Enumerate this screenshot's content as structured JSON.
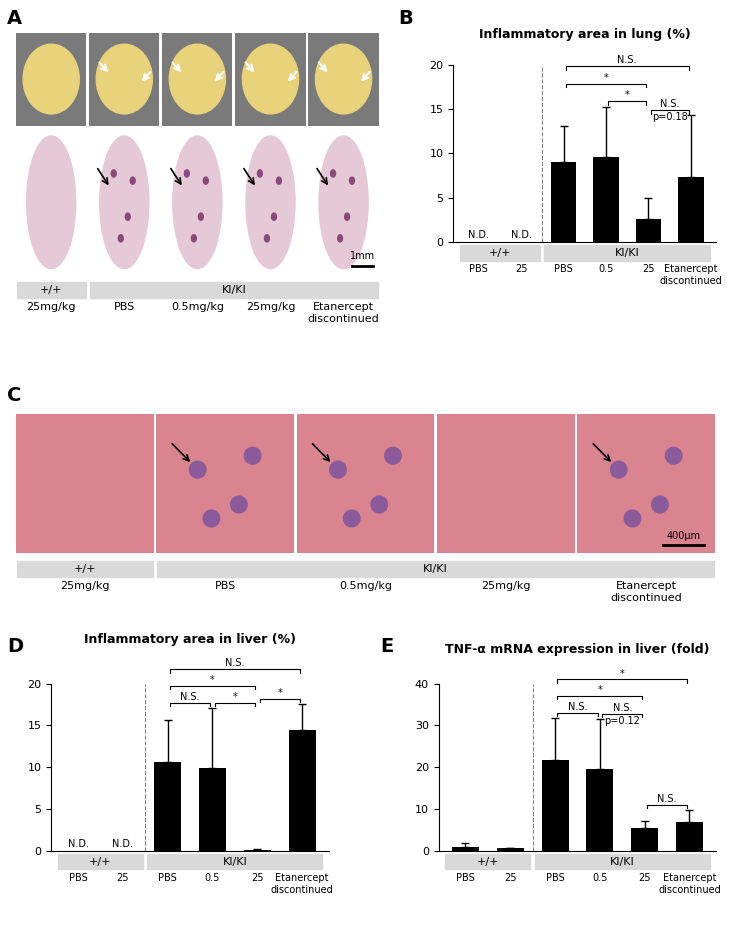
{
  "chart_data": [
    {
      "type": "bar",
      "panel": "B",
      "title": "Inflammatory area in lung (%)",
      "categories": [
        "PBS",
        "25",
        "PBS",
        "0.5",
        "25",
        "Etanercept\ndiscontinued"
      ],
      "values": [
        null,
        null,
        9.0,
        9.6,
        2.6,
        7.3
      ],
      "value_labels": [
        "N.D.",
        "N.D.",
        null,
        null,
        null,
        null
      ],
      "error": [
        null,
        null,
        4.1,
        5.7,
        2.4,
        7.0
      ],
      "color": "#000000",
      "ylim": [
        0,
        20
      ],
      "yticks": [
        0,
        5,
        10,
        15,
        20
      ],
      "groups": [
        {
          "name": "+/+",
          "count": 2
        },
        {
          "name": "KI/KI",
          "count": 4
        }
      ],
      "comparisons": [
        {
          "from": 2,
          "to": 5,
          "label": "N.S."
        },
        {
          "from": 2,
          "to": 4,
          "label": "*"
        },
        {
          "from": 3,
          "to": 4,
          "label": "*"
        },
        {
          "from": 4,
          "to": 5,
          "label": "N.S.",
          "note": "p=0.18"
        }
      ]
    },
    {
      "type": "bar",
      "panel": "D",
      "title": "Inflammatory area in liver (%)",
      "categories": [
        "PBS",
        "25",
        "PBS",
        "0.5",
        "25",
        "Etanercept\ndiscontinued"
      ],
      "values": [
        null,
        null,
        10.6,
        9.9,
        0.1,
        14.5
      ],
      "value_labels": [
        "N.D.",
        "N.D.",
        null,
        null,
        null,
        null
      ],
      "error": [
        null,
        null,
        5.1,
        7.2,
        0.1,
        3.1
      ],
      "color": "#000000",
      "ylim": [
        0,
        20
      ],
      "yticks": [
        0,
        5,
        10,
        15,
        20
      ],
      "groups": [
        {
          "name": "+/+",
          "count": 2
        },
        {
          "name": "KI/KI",
          "count": 4
        }
      ],
      "comparisons": [
        {
          "from": 2,
          "to": 5,
          "label": "N.S."
        },
        {
          "from": 2,
          "to": 4,
          "label": "*"
        },
        {
          "from": 2,
          "to": 3,
          "label": "N.S."
        },
        {
          "from": 3,
          "to": 4,
          "label": "*"
        },
        {
          "from": 4,
          "to": 5,
          "label": "*"
        }
      ]
    },
    {
      "type": "bar",
      "panel": "E",
      "title": "TNF-α mRNA expression in liver (fold)",
      "categories": [
        "PBS",
        "25",
        "PBS",
        "0.5",
        "25",
        "Etanercept\ndiscontinued"
      ],
      "values": [
        1.0,
        0.6,
        21.8,
        19.5,
        5.5,
        6.9
      ],
      "error": [
        0.8,
        0.2,
        10.0,
        12.0,
        1.7,
        2.9
      ],
      "color": "#000000",
      "ylim": [
        0,
        40
      ],
      "yticks": [
        0,
        10,
        20,
        30,
        40
      ],
      "groups": [
        {
          "name": "+/+",
          "count": 2
        },
        {
          "name": "KI/KI",
          "count": 4
        }
      ],
      "comparisons": [
        {
          "from": 2,
          "to": 5,
          "label": "*"
        },
        {
          "from": 2,
          "to": 4,
          "label": "*"
        },
        {
          "from": 2,
          "to": 3,
          "label": "N.S."
        },
        {
          "from": 3,
          "to": 4,
          "label": "N.S.",
          "note": "p=0.12"
        },
        {
          "from": 4,
          "to": 5,
          "label": "N.S."
        }
      ]
    }
  ],
  "images": [
    {
      "panel": "A",
      "groups": [
        {
          "name": "+/+",
          "count": 1
        },
        {
          "name": "KI/KI",
          "count": 4
        }
      ],
      "labels": [
        "25mg/kg",
        "PBS",
        "0.5mg/kg",
        "25mg/kg",
        "Etanercept\ndiscontinued"
      ],
      "scale_bar": "1mm"
    },
    {
      "panel": "C",
      "groups": [
        {
          "name": "+/+",
          "count": 1
        },
        {
          "name": "KI/KI",
          "count": 4
        }
      ],
      "labels": [
        "25mg/kg",
        "PBS",
        "0.5mg/kg",
        "25mg/kg",
        "Etanercept\ndiscontinued"
      ],
      "scale_bar": "400μm"
    }
  ]
}
